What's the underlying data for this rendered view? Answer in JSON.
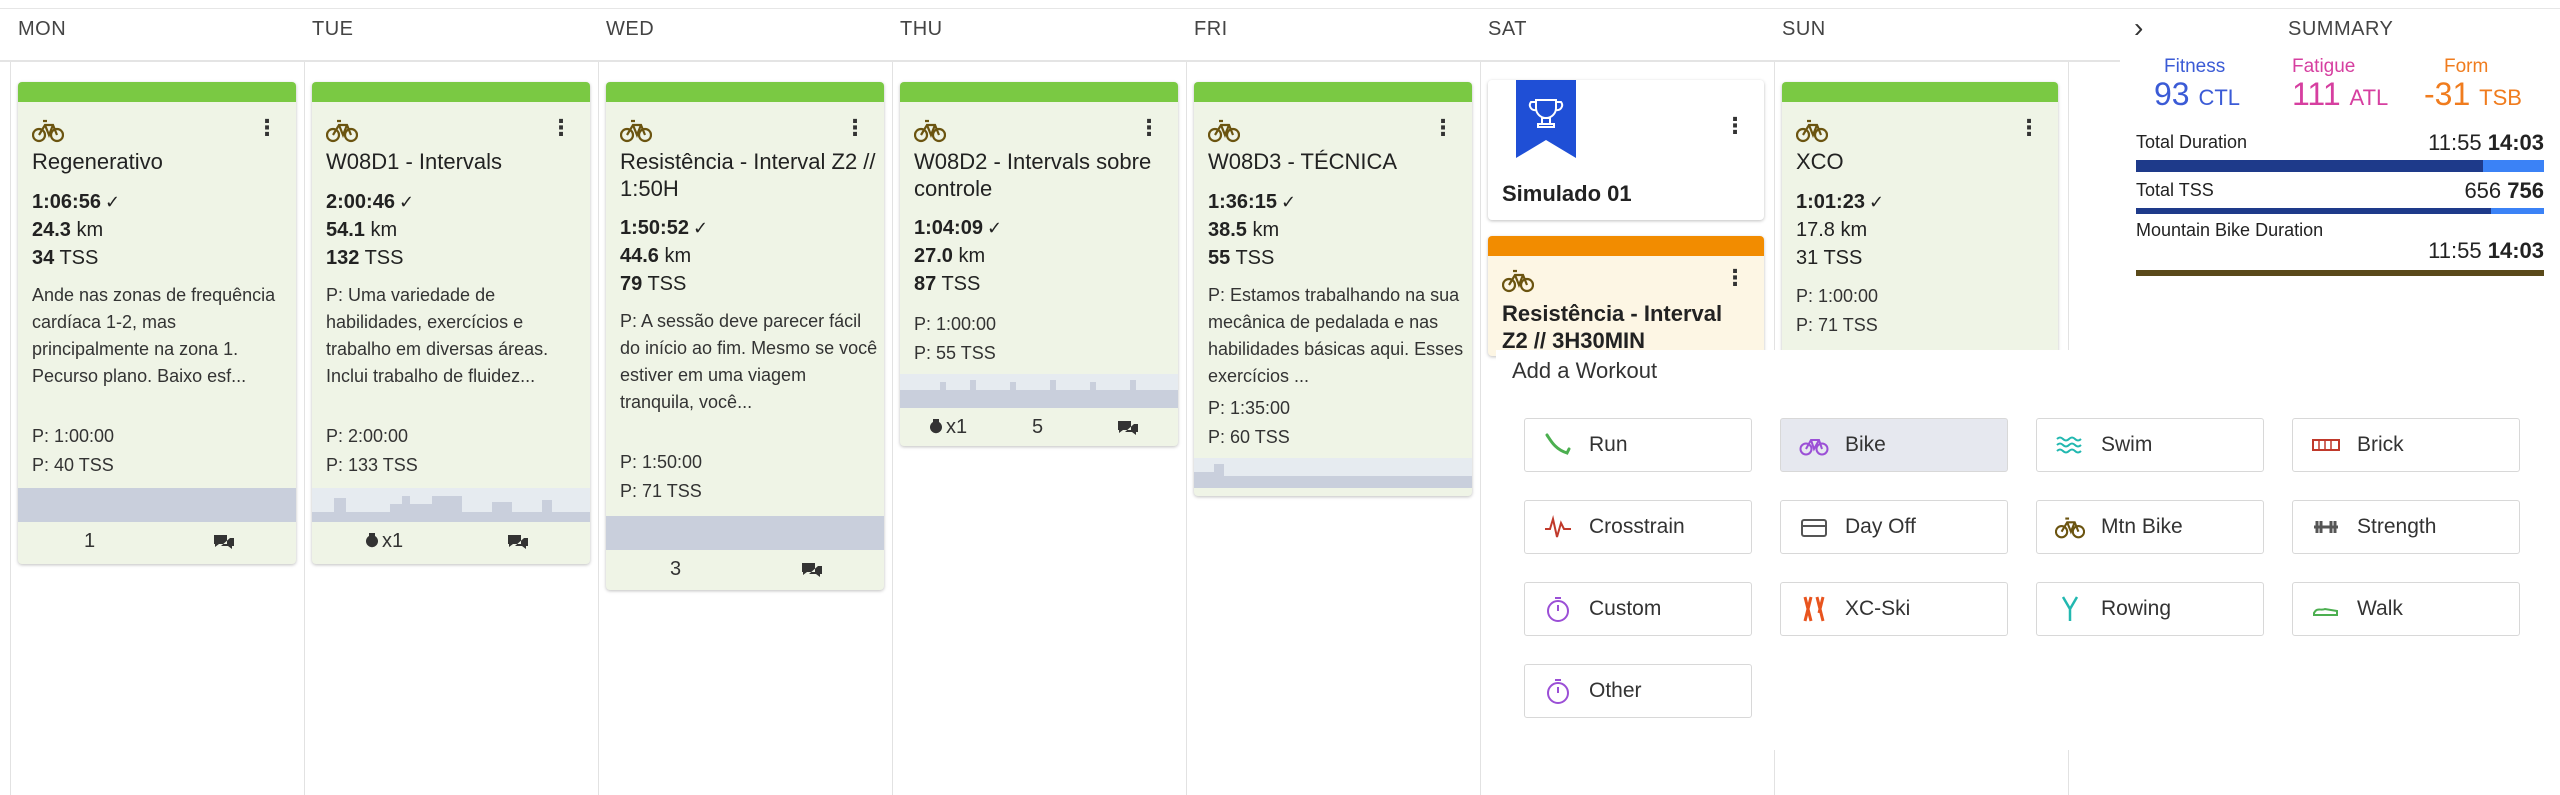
{
  "days": [
    "MON",
    "TUE",
    "WED",
    "THU",
    "FRI",
    "SAT",
    "SUN"
  ],
  "summary_header": "SUMMARY",
  "next_arrow": "›",
  "cards": [
    {
      "title": "Regenerativo",
      "duration": "1:06:56",
      "distance": "24.3",
      "dist_unit": "km",
      "tss": "34",
      "tss_unit": "TSS",
      "desc": "Ande nas zonas de frequência cardíaca 1-2, mas principalmente na zona 1. Pecurso plano. Baixo esf...",
      "p_dur": "P: 1:00:00",
      "p_tss": "P: 40 TSS",
      "footer_count": "1"
    },
    {
      "title": "W08D1 - Intervals",
      "duration": "2:00:46",
      "distance": "54.1",
      "dist_unit": "km",
      "tss": "132",
      "tss_unit": "TSS",
      "desc": "P: Uma variedade de habilidades, exercícios e trabalho em diversas áreas. Inclui trabalho de fluidez...",
      "p_dur": "P: 2:00:00",
      "p_tss": "P: 133 TSS",
      "footer_count": "x1"
    },
    {
      "title": "Resistência - Interval Z2 // 1:50H",
      "duration": "1:50:52",
      "distance": "44.6",
      "dist_unit": "km",
      "tss": "79",
      "tss_unit": "TSS",
      "desc": "P: A sessão deve parecer fácil do início ao fim. Mesmo se você estiver em uma viagem tranquila, você...",
      "p_dur": "P: 1:50:00",
      "p_tss": "P: 71 TSS",
      "footer_count": "3"
    },
    {
      "title": "W08D2 - Intervals sobre controle",
      "duration": "1:04:09",
      "distance": "27.0",
      "dist_unit": "km",
      "tss": "87",
      "tss_unit": "TSS",
      "p_dur": "P: 1:00:00",
      "p_tss": "P: 55 TSS",
      "footer_kettle": "x1",
      "footer_count": "5"
    },
    {
      "title": "W08D3 - TÉCNICA",
      "duration": "1:36:15",
      "distance": "38.5",
      "dist_unit": "km",
      "tss": "55",
      "tss_unit": "TSS",
      "desc": "P: Estamos trabalhando na sua mecânica de pedalada e nas habilidades básicas aqui. Esses exercícios ...",
      "p_dur": "P: 1:35:00",
      "p_tss": "P: 60 TSS"
    },
    {
      "title": "XCO",
      "duration": "1:01:23",
      "distance": "17.8",
      "dist_unit": "km",
      "tss": "31",
      "tss_unit": "TSS",
      "p_dur": "P: 1:00:00",
      "p_tss": "P: 71 TSS"
    }
  ],
  "event_card": {
    "title": "Simulado 01"
  },
  "sat_workout": {
    "title": "Resistência - Interval Z2 // 3H30MIN"
  },
  "summary": {
    "fitness_label": "Fitness",
    "fitness_value": "93",
    "fitness_unit": "CTL",
    "fatigue_label": "Fatigue",
    "fatigue_value": "111",
    "fatigue_unit": "ATL",
    "form_label": "Form",
    "form_value": "-31",
    "form_unit": "TSB",
    "total_duration_label": "Total Duration",
    "total_duration_done": "11:55",
    "total_duration_planned": "14:03",
    "total_duration_fraction": 0.85,
    "total_tss_label": "Total TSS",
    "total_tss_done": "656",
    "total_tss_planned": "756",
    "total_tss_fraction": 0.87,
    "mtb_label": "Mountain Bike Duration",
    "mtb_done": "11:55",
    "mtb_planned": "14:03",
    "colors": {
      "fitness": "#3b5bd6",
      "fatigue": "#d63fa0",
      "form": "#f07c1e",
      "bar": "#1e3a8a",
      "bar_planned": "#3b82f6",
      "mtb_bar": "#5a4a1a"
    }
  },
  "add_workout": {
    "title": "Add a Workout",
    "buttons": [
      {
        "label": "Run",
        "icon": "run-icon"
      },
      {
        "label": "Bike",
        "icon": "bike-icon"
      },
      {
        "label": "Swim",
        "icon": "swim-icon"
      },
      {
        "label": "Brick",
        "icon": "brick-icon"
      },
      {
        "label": "Crosstrain",
        "icon": "crosstrain-icon"
      },
      {
        "label": "Day Off",
        "icon": "day-off-icon"
      },
      {
        "label": "Mtn Bike",
        "icon": "mtn-bike-icon"
      },
      {
        "label": "Strength",
        "icon": "strength-icon"
      },
      {
        "label": "Custom",
        "icon": "custom-icon"
      },
      {
        "label": "XC-Ski",
        "icon": "xc-ski-icon"
      },
      {
        "label": "Rowing",
        "icon": "rowing-icon"
      },
      {
        "label": "Walk",
        "icon": "walk-icon"
      },
      {
        "label": "Other",
        "icon": "other-icon"
      }
    ]
  },
  "colors": {
    "completed": "#7ac943",
    "planned": "#f28c00",
    "accent": "#2d6cdf"
  }
}
